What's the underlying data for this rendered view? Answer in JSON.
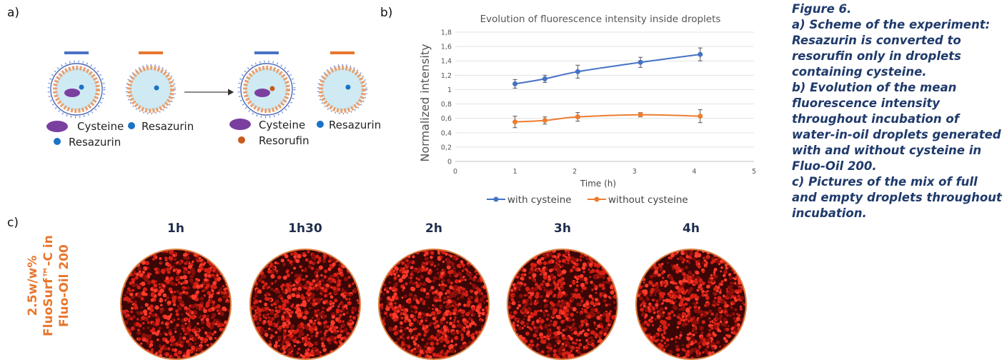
{
  "panels": {
    "a": "a)",
    "b": "b)",
    "c": "c)"
  },
  "scheme": {
    "legend_left": [
      {
        "label": "Cysteine",
        "color": "#7b3fa0"
      },
      {
        "label": "Resazurin",
        "color": "#1a73c6"
      },
      {
        "label": "Resazurin",
        "color": "#1a73c6"
      }
    ],
    "legend_right": [
      {
        "label": "Cysteine",
        "color": "#7b3fa0"
      },
      {
        "label": "Resazurin",
        "color": "#1a73c6"
      },
      {
        "label": "Resorufin",
        "color": "#c85a1a"
      }
    ],
    "bar_colors": [
      "#4a72c4",
      "#e8762c"
    ]
  },
  "chart_data": {
    "type": "line",
    "title": "Evolution of fluorescence intensity inside droplets",
    "xlabel": "Time (h)",
    "ylabel": "Normalized intensity",
    "xlim": [
      0,
      5
    ],
    "ylim": [
      0,
      1.8
    ],
    "x_ticks": [
      "0",
      "1",
      "2",
      "3",
      "4",
      "5"
    ],
    "y_ticks": [
      "0",
      "0,2",
      "0,4",
      "0,6",
      "0,8",
      "1",
      "1,2",
      "1,4",
      "1,6",
      "1,8"
    ],
    "grid": true,
    "legend_position": "bottom",
    "series": [
      {
        "name": "with cysteine",
        "color": "#4472c4",
        "x": [
          1,
          1.5,
          2.05,
          3.1,
          4.1
        ],
        "y": [
          1.08,
          1.15,
          1.25,
          1.38,
          1.49
        ],
        "err": [
          0.06,
          0.05,
          0.09,
          0.07,
          0.09
        ]
      },
      {
        "name": "without cysteine",
        "color": "#ed7d31",
        "x": [
          1,
          1.5,
          2.05,
          3.1,
          4.1
        ],
        "y": [
          0.55,
          0.57,
          0.62,
          0.65,
          0.63
        ],
        "err": [
          0.08,
          0.05,
          0.06,
          0.03,
          0.09
        ]
      }
    ]
  },
  "caption": {
    "title": "Figure 6.",
    "a": "a) Scheme of the experiment: Resazurin is converted to resorufin only in droplets containing cysteine.",
    "b": "b) Evolution of the mean fluorescence intensity throughout incubation of water-in-oil droplets generated with and without cysteine in Fluo-Oil 200.",
    "c": "c) Pictures of the mix of full and empty droplets throughout incubation."
  },
  "panel_c": {
    "side_label_line1": "2.5w/w%",
    "side_label_line2": "FluoSurf™-C in",
    "side_label_line3": "Fluo-Oil 200",
    "times": [
      "1h",
      "1h30",
      "2h",
      "3h",
      "4h"
    ]
  }
}
